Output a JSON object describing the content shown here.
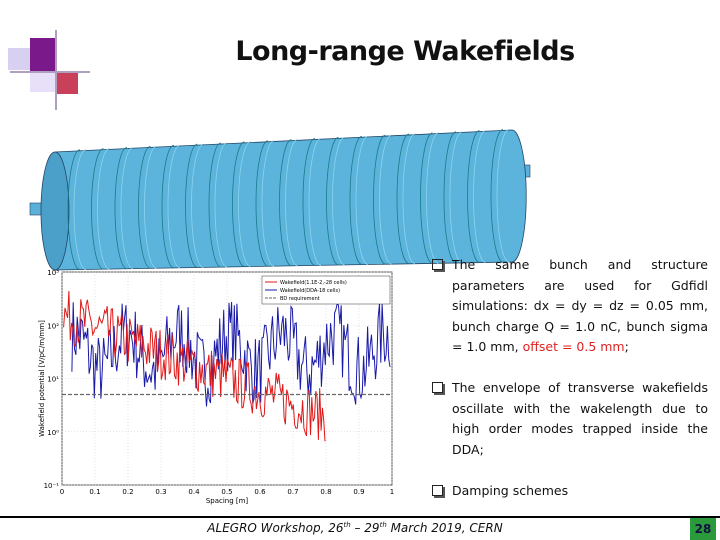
{
  "title": "Long-range Wakefields",
  "chart": {
    "y_label": "Wakefield potential [V/pC/m/mm]",
    "x_label": "Spacing [m]",
    "xticks": [
      0,
      0.1,
      0.2,
      0.3,
      0.4,
      0.5,
      0.6,
      0.7,
      0.8,
      0.9,
      1
    ],
    "yticks": [
      {
        "value": 0.1,
        "label": "10⁻¹"
      },
      {
        "value": 1,
        "label": "10⁰"
      },
      {
        "value": 10,
        "label": "10¹"
      },
      {
        "value": 100,
        "label": "10²"
      },
      {
        "value": 1000,
        "label": "10³"
      }
    ],
    "legend": [
      "Wakefield(1.1E-2,-28 cells)",
      "Wakefield(DDA-18 cells)",
      "BD requirement"
    ],
    "bd_level": 5
  },
  "bullets": [
    [
      "The same bunch and structure parameters are used for Gdfidl simulations: dx = dy = dz = 0.05 mm, bunch charge Q = 1.0 nC, bunch sigma = 1.0 mm, ",
      "offset = 0.5 mm",
      ";"
    ],
    [
      "The envelope of transverse wakefields oscillate with the wakelength due to high order modes trapped inside the DDA;"
    ],
    [
      "Damping schemes"
    ]
  ],
  "footer": [
    "ALEGRO Workshop, 26",
    "th",
    " – 29",
    "th",
    " March 2019, CERN"
  ],
  "page_number": "28"
}
